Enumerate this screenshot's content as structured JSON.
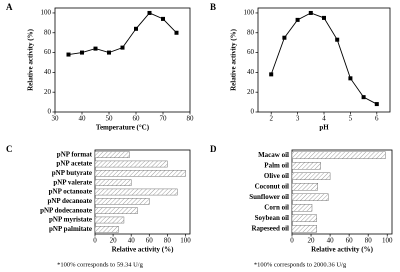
{
  "chart_data": [
    {
      "label": "A",
      "type": "line",
      "color": "#000000",
      "x": [
        35,
        40,
        45,
        50,
        55,
        60,
        65,
        70,
        75
      ],
      "values": [
        58,
        60,
        64,
        60,
        65,
        84,
        100,
        94,
        80
      ],
      "x_label": "Temperature (°C)",
      "y_label": "Relative activity (%)",
      "xlim": [
        30,
        80
      ],
      "xticks": [
        30,
        40,
        50,
        60,
        70,
        80
      ],
      "ylim": [
        0,
        105
      ],
      "yticks": [
        0,
        20,
        40,
        60,
        80,
        100
      ]
    },
    {
      "label": "B",
      "type": "line",
      "color": "#000000",
      "x": [
        2,
        2.5,
        3,
        3.5,
        4,
        4.5,
        5,
        5.5,
        6
      ],
      "values": [
        38,
        75,
        93,
        100,
        95,
        73,
        34,
        15,
        8
      ],
      "x_label": "pH",
      "y_label": "Relative activity (%)",
      "xlim": [
        1.5,
        6.5
      ],
      "xticks": [
        2,
        3,
        4,
        5,
        6
      ],
      "ylim": [
        0,
        105
      ],
      "yticks": [
        0,
        20,
        40,
        60,
        80,
        100
      ]
    },
    {
      "label": "C",
      "type": "barh",
      "categories": [
        "pNP format",
        "pNP acetate",
        "pNP butyrate",
        "pNP valerate",
        "pNP octanoate",
        "pNP decanoate",
        "pNP dodecanoate",
        "pNP myristate",
        "pNP palmitate"
      ],
      "values": [
        38,
        80,
        100,
        40,
        91,
        60,
        47,
        32,
        26
      ],
      "x_label": "Relative activity (%)",
      "xlim": [
        0,
        105
      ],
      "xticks": [
        0,
        20,
        40,
        60,
        80,
        100
      ],
      "note": "*100% corresponds to 59.34 U/g"
    },
    {
      "label": "D",
      "type": "barh",
      "categories": [
        "Macaw oil",
        "Palm oil",
        "Olive oil",
        "Coconut oil",
        "Sunflower oil",
        "Corn oil",
        "Soybean oil",
        "Rapeseed oil"
      ],
      "values": [
        98,
        30,
        40,
        27,
        38,
        21,
        26,
        26
      ],
      "x_label": "Relative activity (%)",
      "xlim": [
        0,
        105
      ],
      "xticks": [
        0,
        20,
        40,
        60,
        80,
        100
      ],
      "note": "*100% corresponds to 2000.36 U/g"
    }
  ]
}
